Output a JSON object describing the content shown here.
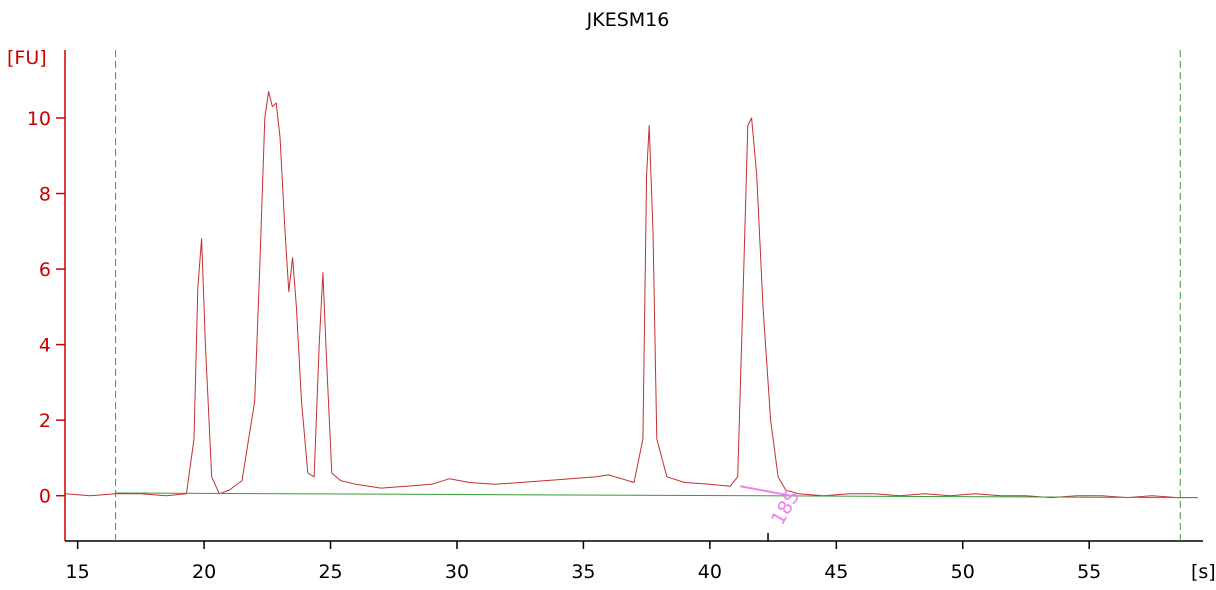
{
  "chart_data": {
    "type": "line",
    "title": "JKESM16",
    "ylabel": "[FU]",
    "xlabel": "[s]",
    "xlim": [
      14.5,
      59.5
    ],
    "ylim": [
      -1.2,
      11.8
    ],
    "x_ticks": [
      15,
      20,
      25,
      30,
      35,
      40,
      45,
      50,
      55
    ],
    "y_ticks": [
      0,
      2,
      4,
      6,
      8,
      10
    ],
    "series": [
      {
        "color": "#c43030",
        "x": [
          14.5,
          15.5,
          16.5,
          17.5,
          18.5,
          19.3,
          19.6,
          19.75,
          19.9,
          20.05,
          20.3,
          20.6,
          21.0,
          21.5,
          22.0,
          22.2,
          22.4,
          22.55,
          22.7,
          22.85,
          23.0,
          23.2,
          23.35,
          23.5,
          23.65,
          23.85,
          24.1,
          24.35,
          24.55,
          24.7,
          24.85,
          25.05,
          25.4,
          26.0,
          27.0,
          28.0,
          29.0,
          29.7,
          30.5,
          31.5,
          32.5,
          33.5,
          34.5,
          35.5,
          36.0,
          36.5,
          37.0,
          37.35,
          37.5,
          37.6,
          37.75,
          37.9,
          38.3,
          39.0,
          40.0,
          40.8,
          41.1,
          41.3,
          41.5,
          41.65,
          41.85,
          42.1,
          42.4,
          42.7,
          43.0,
          43.5,
          44.5,
          45.5,
          46.5,
          47.5,
          48.5,
          49.5,
          50.5,
          51.5,
          52.5,
          53.5,
          54.5,
          55.5,
          56.5,
          57.5,
          58.5,
          59.3
        ],
        "y": [
          0.05,
          0.0,
          0.05,
          0.05,
          0.0,
          0.05,
          1.5,
          5.5,
          6.8,
          4.0,
          0.5,
          0.05,
          0.15,
          0.4,
          2.5,
          6.0,
          10.0,
          10.7,
          10.3,
          10.4,
          9.5,
          7.0,
          5.4,
          6.3,
          5.0,
          2.5,
          0.6,
          0.5,
          4.0,
          5.9,
          3.5,
          0.6,
          0.4,
          0.3,
          0.2,
          0.25,
          0.3,
          0.45,
          0.35,
          0.3,
          0.35,
          0.4,
          0.45,
          0.5,
          0.55,
          0.45,
          0.35,
          1.5,
          8.5,
          9.8,
          7.0,
          1.5,
          0.5,
          0.35,
          0.3,
          0.25,
          0.5,
          5.0,
          9.8,
          10.0,
          8.5,
          5.0,
          2.0,
          0.5,
          0.15,
          0.05,
          0.0,
          0.05,
          0.05,
          0.0,
          0.05,
          0.0,
          0.05,
          0.0,
          0.0,
          -0.05,
          0.0,
          0.0,
          -0.05,
          0.0,
          -0.05,
          -0.05
        ]
      },
      {
        "color": "#3a9a3a",
        "x": [
          16.5,
          58.6
        ],
        "y": [
          0.07,
          -0.05
        ]
      }
    ],
    "vlines": [
      {
        "x": 16.5,
        "color": "#3a9a3a",
        "style": "dashed"
      },
      {
        "x": 58.6,
        "color": "#3a9a3a",
        "style": "dashed"
      }
    ],
    "marker": {
      "x": 42.3
    },
    "annotations": [
      {
        "text": "18S",
        "x": 43.2,
        "y": -0.4,
        "color": "#ee82ee",
        "leader_from": [
          41.2,
          0.25
        ],
        "leader_to": [
          43.2,
          0.0
        ]
      }
    ],
    "grid": false,
    "legend": "none"
  }
}
